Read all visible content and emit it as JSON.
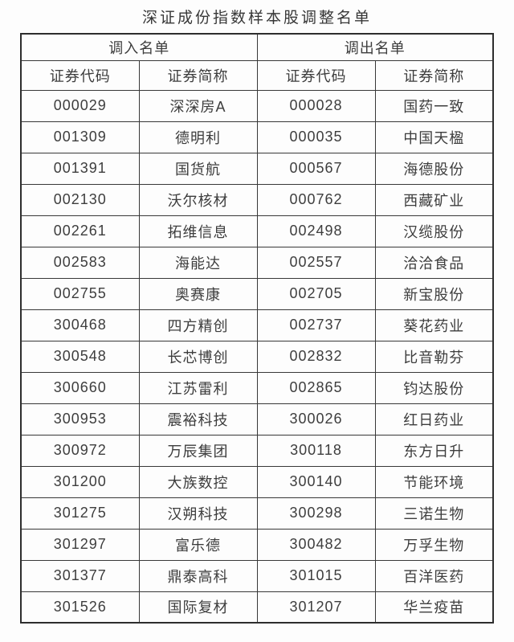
{
  "page": {
    "title": "深证成份指数样本股调整名单"
  },
  "colors": {
    "background": "#fdfdfd",
    "border": "#383838",
    "text": "#3d3d3d"
  },
  "table": {
    "group_headers": [
      {
        "label": "调入名单"
      },
      {
        "label": "调出名单"
      }
    ],
    "column_headers": [
      "证券代码",
      "证券简称",
      "证券代码",
      "证券简称"
    ],
    "rows": [
      {
        "in_code": "000029",
        "in_name": "深深房A",
        "out_code": "000028",
        "out_name": "国药一致"
      },
      {
        "in_code": "001309",
        "in_name": "德明利",
        "out_code": "000035",
        "out_name": "中国天楹"
      },
      {
        "in_code": "001391",
        "in_name": "国货航",
        "out_code": "000567",
        "out_name": "海德股份"
      },
      {
        "in_code": "002130",
        "in_name": "沃尔核材",
        "out_code": "000762",
        "out_name": "西藏矿业"
      },
      {
        "in_code": "002261",
        "in_name": "拓维信息",
        "out_code": "002498",
        "out_name": "汉缆股份"
      },
      {
        "in_code": "002583",
        "in_name": "海能达",
        "out_code": "002557",
        "out_name": "洽洽食品"
      },
      {
        "in_code": "002755",
        "in_name": "奥赛康",
        "out_code": "002705",
        "out_name": "新宝股份"
      },
      {
        "in_code": "300468",
        "in_name": "四方精创",
        "out_code": "002737",
        "out_name": "葵花药业"
      },
      {
        "in_code": "300548",
        "in_name": "长芯博创",
        "out_code": "002832",
        "out_name": "比音勒芬"
      },
      {
        "in_code": "300660",
        "in_name": "江苏雷利",
        "out_code": "002865",
        "out_name": "钧达股份"
      },
      {
        "in_code": "300953",
        "in_name": "震裕科技",
        "out_code": "300026",
        "out_name": "红日药业"
      },
      {
        "in_code": "300972",
        "in_name": "万辰集团",
        "out_code": "300118",
        "out_name": "东方日升"
      },
      {
        "in_code": "301200",
        "in_name": "大族数控",
        "out_code": "300140",
        "out_name": "节能环境"
      },
      {
        "in_code": "301275",
        "in_name": "汉朔科技",
        "out_code": "300298",
        "out_name": "三诺生物"
      },
      {
        "in_code": "301297",
        "in_name": "富乐德",
        "out_code": "300482",
        "out_name": "万孚生物"
      },
      {
        "in_code": "301377",
        "in_name": "鼎泰高科",
        "out_code": "301015",
        "out_name": "百洋医药"
      },
      {
        "in_code": "301526",
        "in_name": "国际复材",
        "out_code": "301207",
        "out_name": "华兰疫苗"
      }
    ]
  }
}
